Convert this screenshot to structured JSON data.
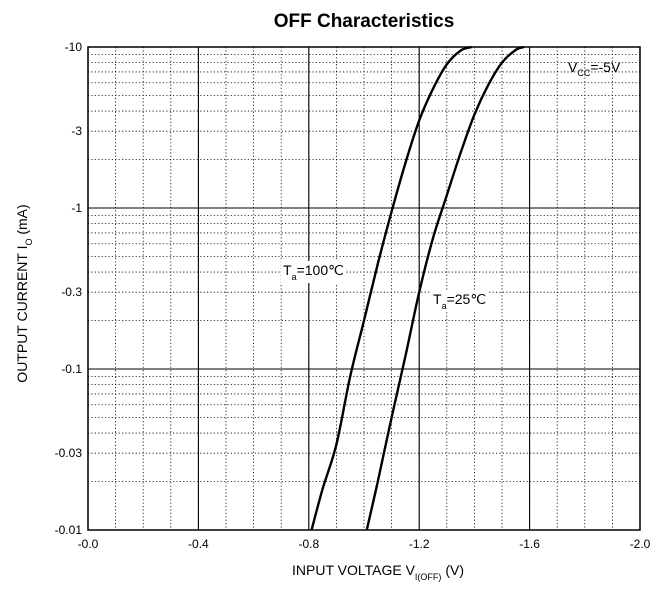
{
  "chart_data": {
    "type": "line",
    "title": "OFF Characteristics",
    "xlabel": {
      "text": "INPUT VOLTAGE   V",
      "sub": "I(OFF)",
      "unit": "(V)"
    },
    "ylabel": {
      "text": "OUTPUT CURRENT   I",
      "sub": "O",
      "unit": "(mA)"
    },
    "xlim": [
      0.0,
      -2.0
    ],
    "x_ticks": [
      0.0,
      -0.4,
      -0.8,
      -1.2,
      -1.6,
      -2.0
    ],
    "x_tick_labels": [
      "-0.0",
      "-0.4",
      "-0.8",
      "-1.2",
      "-1.6",
      "-2.0"
    ],
    "y_scale": "log",
    "ylim": [
      -0.01,
      -10
    ],
    "y_ticks": [
      -0.01,
      -0.03,
      -0.1,
      -0.3,
      -1,
      -3,
      -10
    ],
    "y_tick_labels": [
      "-0.01",
      "-0.03",
      "-0.1",
      "-0.3",
      "-1",
      "-3",
      "-10"
    ],
    "grid": true,
    "series": [
      {
        "label_main": "T",
        "label_sub": "a",
        "label_rest": "=100℃",
        "x": [
          -0.81,
          -0.85,
          -0.9,
          -0.95,
          -1.0,
          -1.05,
          -1.1,
          -1.15,
          -1.2,
          -1.25,
          -1.3,
          -1.35,
          -1.39
        ],
        "y": [
          -0.01,
          -0.018,
          -0.034,
          -0.09,
          -0.2,
          -0.45,
          -0.95,
          -1.9,
          -3.5,
          -5.5,
          -7.8,
          -9.5,
          -10
        ]
      },
      {
        "label_main": "T",
        "label_sub": "a",
        "label_rest": "=25℃",
        "x": [
          -1.01,
          -1.05,
          -1.1,
          -1.15,
          -1.2,
          -1.25,
          -1.3,
          -1.35,
          -1.4,
          -1.45,
          -1.5,
          -1.55,
          -1.58
        ],
        "y": [
          -0.01,
          -0.02,
          -0.05,
          -0.12,
          -0.3,
          -0.65,
          -1.2,
          -2.2,
          -3.8,
          -5.8,
          -8.0,
          -9.6,
          -10
        ]
      }
    ],
    "annotation": {
      "main": "V",
      "sub": "CC",
      "rest": "=-5V"
    }
  }
}
